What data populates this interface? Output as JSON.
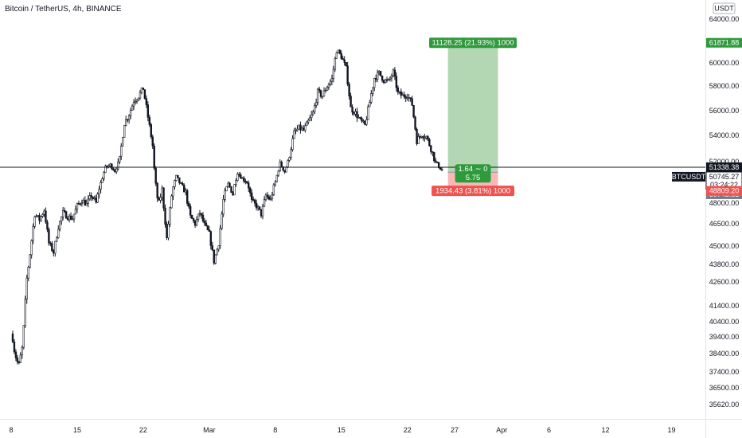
{
  "header": {
    "title": "Bitcoin / TetherUS, 4h, BINANCE"
  },
  "colors": {
    "candle": "#131722",
    "profit_zone": "#b3d6b3",
    "loss_zone": "#f9b8b8",
    "profit_tag": "#2f9a3c",
    "loss_tag": "#ef5350",
    "mid_tag": "#2f9a3c",
    "price_line": "#131722",
    "current_tag": "#131722",
    "grey_tag": "#787b86"
  },
  "chart_data": {
    "type": "candlestick",
    "symbol": "BTCUSDT",
    "currency": "USDT",
    "timeframe": "4h",
    "exchange": "BINANCE",
    "ylim": [
      35300,
      65300
    ],
    "y_ticks": [
      {
        "label": "64000.00",
        "value": 64000
      },
      {
        "label": "62000.00",
        "value": 62000
      },
      {
        "label": "60000.00",
        "value": 60000
      },
      {
        "label": "58000.00",
        "value": 58000
      },
      {
        "label": "56000.00",
        "value": 56000
      },
      {
        "label": "54000.00",
        "value": 54000
      },
      {
        "label": "52000.00",
        "value": 52000
      },
      {
        "label": "50000.00",
        "value": 50000
      },
      {
        "label": "49000.00",
        "value": 49000
      },
      {
        "label": "48000.00",
        "value": 48000
      },
      {
        "label": "46500.00",
        "value": 46500
      },
      {
        "label": "45000.00",
        "value": 45000
      },
      {
        "label": "43800.00",
        "value": 43800
      },
      {
        "label": "42600.00",
        "value": 42600
      },
      {
        "label": "41400.00",
        "value": 41400
      },
      {
        "label": "40400.00",
        "value": 40400
      },
      {
        "label": "39400.00",
        "value": 39400
      },
      {
        "label": "38400.00",
        "value": 38400
      },
      {
        "label": "37400.00",
        "value": 37400
      },
      {
        "label": "36500.00",
        "value": 36500
      },
      {
        "label": "35620.00",
        "value": 35620
      }
    ],
    "x_ticks": [
      {
        "label": "8",
        "day": 8
      },
      {
        "label": "15",
        "day": 15
      },
      {
        "label": "22",
        "day": 22
      },
      {
        "label": "Mar",
        "day": 29
      },
      {
        "label": "8",
        "day": 36
      },
      {
        "label": "15",
        "day": 43
      },
      {
        "label": "22",
        "day": 50
      },
      {
        "label": "27",
        "day": 55
      },
      {
        "label": "Apr",
        "day": 60
      },
      {
        "label": "6",
        "day": 65
      },
      {
        "label": "12",
        "day": 71
      },
      {
        "label": "19",
        "day": 78
      }
    ],
    "price_path": [
      [
        8.0,
        39600
      ],
      [
        8.4,
        38400
      ],
      [
        8.8,
        37700
      ],
      [
        9.2,
        38800
      ],
      [
        9.6,
        42500
      ],
      [
        10.0,
        44500
      ],
      [
        10.5,
        47200
      ],
      [
        11.0,
        46800
      ],
      [
        11.5,
        47500
      ],
      [
        12.0,
        45200
      ],
      [
        12.5,
        44600
      ],
      [
        13.0,
        46300
      ],
      [
        13.5,
        47300
      ],
      [
        14.0,
        47000
      ],
      [
        14.5,
        46900
      ],
      [
        15.0,
        47800
      ],
      [
        15.5,
        48200
      ],
      [
        16.0,
        47900
      ],
      [
        16.5,
        48500
      ],
      [
        17.0,
        48000
      ],
      [
        17.5,
        49500
      ],
      [
        18.0,
        51300
      ],
      [
        18.5,
        51600
      ],
      [
        19.0,
        50900
      ],
      [
        19.5,
        52200
      ],
      [
        20.0,
        55000
      ],
      [
        20.5,
        55700
      ],
      [
        21.0,
        56800
      ],
      [
        21.5,
        57200
      ],
      [
        22.0,
        57800
      ],
      [
        22.5,
        55500
      ],
      [
        23.0,
        53200
      ],
      [
        23.3,
        49500
      ],
      [
        23.6,
        47800
      ],
      [
        24.0,
        48900
      ],
      [
        24.5,
        45500
      ],
      [
        25.0,
        48500
      ],
      [
        25.5,
        50200
      ],
      [
        26.0,
        49300
      ],
      [
        26.5,
        48700
      ],
      [
        27.0,
        47000
      ],
      [
        27.5,
        46500
      ],
      [
        28.0,
        47300
      ],
      [
        28.5,
        46400
      ],
      [
        29.0,
        45800
      ],
      [
        29.5,
        44000
      ],
      [
        30.0,
        45200
      ],
      [
        30.5,
        48200
      ],
      [
        31.0,
        49400
      ],
      [
        31.5,
        48600
      ],
      [
        32.0,
        50700
      ],
      [
        32.5,
        50000
      ],
      [
        33.0,
        49600
      ],
      [
        33.5,
        48100
      ],
      [
        34.0,
        47800
      ],
      [
        34.5,
        47200
      ],
      [
        35.0,
        48500
      ],
      [
        35.5,
        48200
      ],
      [
        36.0,
        49600
      ],
      [
        36.5,
        51800
      ],
      [
        37.0,
        50800
      ],
      [
        37.5,
        52500
      ],
      [
        38.0,
        54200
      ],
      [
        38.5,
        54600
      ],
      [
        39.0,
        54400
      ],
      [
        39.5,
        55100
      ],
      [
        40.0,
        55800
      ],
      [
        40.5,
        57500
      ],
      [
        41.0,
        57200
      ],
      [
        41.5,
        58000
      ],
      [
        42.0,
        58600
      ],
      [
        42.5,
        61200
      ],
      [
        43.0,
        60600
      ],
      [
        43.5,
        59500
      ],
      [
        44.0,
        56200
      ],
      [
        44.5,
        55800
      ],
      [
        45.0,
        55200
      ],
      [
        45.5,
        54800
      ],
      [
        46.0,
        56700
      ],
      [
        46.5,
        58700
      ],
      [
        47.0,
        59100
      ],
      [
        47.5,
        58500
      ],
      [
        48.0,
        58400
      ],
      [
        48.5,
        59200
      ],
      [
        49.0,
        57400
      ],
      [
        49.5,
        57200
      ],
      [
        50.0,
        57300
      ],
      [
        50.5,
        56500
      ],
      [
        51.0,
        53600
      ],
      [
        51.5,
        54100
      ],
      [
        52.0,
        53900
      ],
      [
        52.5,
        53000
      ],
      [
        53.0,
        51900
      ],
      [
        53.5,
        51200
      ],
      [
        53.8,
        50745
      ]
    ],
    "current_price": {
      "value": 50745.27,
      "label": "50745.27",
      "symbol": "BTCUSDT",
      "countdown": "03:24:22"
    },
    "reference_line": {
      "value": 51338.38,
      "label": "51338.38"
    },
    "grey_level": {
      "value": 50743.63,
      "label": "50743.63"
    },
    "position": {
      "type": "long",
      "start_day": 54.3,
      "end_day": 59.6,
      "entry": 50743.63,
      "target": 61871.88,
      "stop": 48809.2,
      "target_label": "61871.88",
      "stop_label": "48809.20",
      "profit_text": "11128.25 (21.93%) 1000",
      "loss_text": "1934.43 (3.81%) 1000",
      "ratio_text": "1.64 ∼ 0",
      "qty_text": "5.75"
    }
  }
}
